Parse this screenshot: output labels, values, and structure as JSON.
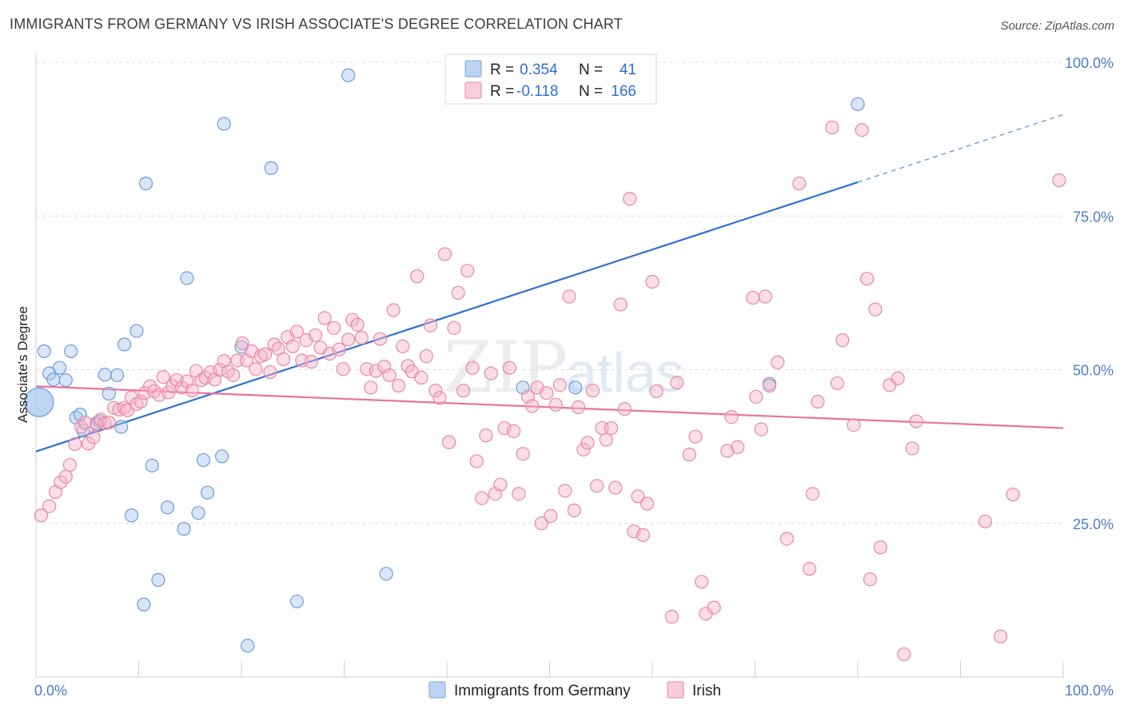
{
  "title": "IMMIGRANTS FROM GERMANY VS IRISH ASSOCIATE'S DEGREE CORRELATION CHART",
  "source": "Source: ZipAtlas.com",
  "watermark": {
    "zip": "ZIP",
    "atlas": "atlas"
  },
  "legend": {
    "rows": [
      {
        "r_label": "R =",
        "r_value": "0.354",
        "n_label": "N =",
        "n_value": "41",
        "color": "#a9c8f0"
      },
      {
        "r_label": "R =",
        "r_value": "-0.118",
        "n_label": "N =",
        "n_value": "166",
        "color": "#f6b6c9"
      }
    ]
  },
  "bottom_legend": [
    {
      "label": "Immigrants from Germany",
      "color": "#a9c8f0"
    },
    {
      "label": "Irish",
      "color": "#f6b6c9"
    }
  ],
  "chart_data": {
    "type": "scatter",
    "title": "IMMIGRANTS FROM GERMANY VS IRISH ASSOCIATE'S DEGREE CORRELATION CHART",
    "xlabel": "",
    "ylabel": "Associate's Degree",
    "xlim": [
      0,
      100
    ],
    "ylim": [
      0,
      100
    ],
    "x_tick_labels": [
      "0.0%",
      "100.0%"
    ],
    "y_tick_labels": [
      "25.0%",
      "50.0%",
      "75.0%",
      "100.0%"
    ],
    "y_ticks": [
      25,
      50,
      75,
      100
    ],
    "grid": true,
    "series": [
      {
        "name": "Immigrants from Germany",
        "color": "#a9c8f0",
        "stroke": "#6c9bd8",
        "trend_color": "#2f6fd6",
        "trend": {
          "x0": 0,
          "y0": 36.7,
          "x1": 80,
          "y1": 80.5,
          "dashed_to_x": 100,
          "dashed_to_y": 91.5
        },
        "points": [
          [
            0.3,
            44.7,
            1
          ],
          [
            0.8,
            53,
            0
          ],
          [
            1.3,
            49.4,
            0
          ],
          [
            1.7,
            48.4,
            0
          ],
          [
            2.3,
            50.3,
            0
          ],
          [
            2.9,
            48.3,
            0
          ],
          [
            3.4,
            53,
            0
          ],
          [
            3.9,
            42.2,
            0
          ],
          [
            4.3,
            42.7,
            0
          ],
          [
            4.6,
            40.1,
            0
          ],
          [
            5.9,
            41.3,
            0
          ],
          [
            6.2,
            41.6,
            0
          ],
          [
            6.7,
            49.2,
            0
          ],
          [
            7.1,
            46.1,
            0
          ],
          [
            7.9,
            49.1,
            0
          ],
          [
            8.3,
            40.7,
            0
          ],
          [
            8.6,
            54.1,
            0
          ],
          [
            9.3,
            26.3,
            0
          ],
          [
            9.8,
            56.3,
            0
          ],
          [
            10.5,
            11.8,
            0
          ],
          [
            10.7,
            80.3,
            0
          ],
          [
            11.3,
            34.4,
            0
          ],
          [
            11.9,
            15.8,
            0
          ],
          [
            12.8,
            27.6,
            0
          ],
          [
            14.4,
            24.1,
            0
          ],
          [
            14.7,
            64.9,
            0
          ],
          [
            15.8,
            26.7,
            0
          ],
          [
            16.3,
            35.3,
            0
          ],
          [
            16.7,
            30,
            0
          ],
          [
            18.1,
            35.9,
            0
          ],
          [
            18.3,
            90,
            0
          ],
          [
            20,
            53.7,
            0
          ],
          [
            20.6,
            5.1,
            0
          ],
          [
            22.9,
            82.8,
            0
          ],
          [
            25.4,
            12.3,
            0
          ],
          [
            30.4,
            97.9,
            0
          ],
          [
            34.1,
            16.8,
            0
          ],
          [
            47.4,
            47.1,
            0
          ],
          [
            52.5,
            47.1,
            0
          ],
          [
            71.4,
            47.7,
            0
          ],
          [
            80,
            93.2,
            0
          ]
        ]
      },
      {
        "name": "Irish",
        "color": "#f6b6c9",
        "stroke": "#e888a4",
        "trend_color": "#e9739a",
        "trend": {
          "x0": 0,
          "y0": 47.3,
          "x1": 100,
          "y1": 40.5
        },
        "points": [
          [
            0.5,
            26.3
          ],
          [
            1.3,
            27.8
          ],
          [
            1.9,
            30.1
          ],
          [
            2.4,
            31.7
          ],
          [
            2.9,
            32.6
          ],
          [
            3.3,
            34.5
          ],
          [
            3.8,
            37.9
          ],
          [
            4.4,
            40.7
          ],
          [
            4.8,
            41.4
          ],
          [
            5.1,
            38
          ],
          [
            5.6,
            39
          ],
          [
            5.9,
            41.1
          ],
          [
            6.3,
            41.9
          ],
          [
            6.7,
            41.3
          ],
          [
            7.1,
            41.4
          ],
          [
            7.6,
            43.8
          ],
          [
            8.1,
            43.5
          ],
          [
            8.6,
            43.8
          ],
          [
            8.9,
            43.4
          ],
          [
            9.3,
            45.5
          ],
          [
            9.8,
            44.4
          ],
          [
            10.2,
            44.8
          ],
          [
            10.6,
            46.2
          ],
          [
            11.1,
            47.3
          ],
          [
            11.5,
            46.5
          ],
          [
            12,
            45.9
          ],
          [
            12.4,
            48.8
          ],
          [
            12.9,
            46.3
          ],
          [
            13.3,
            47.3
          ],
          [
            13.7,
            48.3
          ],
          [
            14.2,
            47.1
          ],
          [
            14.7,
            48.1
          ],
          [
            15.2,
            46.6
          ],
          [
            15.6,
            49.8
          ],
          [
            16.1,
            48.3
          ],
          [
            16.5,
            48.7
          ],
          [
            17,
            49.6
          ],
          [
            17.4,
            48.4
          ],
          [
            17.9,
            50
          ],
          [
            18.3,
            51.4
          ],
          [
            18.7,
            49.7
          ],
          [
            19.2,
            49.1
          ],
          [
            19.6,
            51.5
          ],
          [
            20.1,
            54.3
          ],
          [
            20.5,
            51.5
          ],
          [
            21,
            53
          ],
          [
            21.4,
            50.1
          ],
          [
            21.9,
            52.2
          ],
          [
            22.3,
            52.5
          ],
          [
            22.8,
            49.6
          ],
          [
            23.2,
            54.1
          ],
          [
            23.6,
            53.4
          ],
          [
            24.1,
            51.7
          ],
          [
            24.5,
            55.3
          ],
          [
            25,
            53.8
          ],
          [
            25.4,
            56.2
          ],
          [
            25.9,
            51.5
          ],
          [
            26.3,
            54.8
          ],
          [
            26.8,
            51.3
          ],
          [
            27.2,
            55.6
          ],
          [
            27.7,
            53.6
          ],
          [
            28.1,
            58.4
          ],
          [
            28.6,
            52.6
          ],
          [
            29,
            56.8
          ],
          [
            29.5,
            53.3
          ],
          [
            29.9,
            50.1
          ],
          [
            30.4,
            54.9
          ],
          [
            30.8,
            58.1
          ],
          [
            31.3,
            57.3
          ],
          [
            31.7,
            55.2
          ],
          [
            32.2,
            50.1
          ],
          [
            32.6,
            47.1
          ],
          [
            33.1,
            49.8
          ],
          [
            33.5,
            55
          ],
          [
            33.9,
            50.5
          ],
          [
            34.4,
            49.1
          ],
          [
            34.8,
            59.7
          ],
          [
            35.3,
            47.4
          ],
          [
            35.7,
            53.8
          ],
          [
            36.2,
            50.6
          ],
          [
            36.6,
            49.7
          ],
          [
            37.1,
            65.2
          ],
          [
            37.5,
            48.7
          ],
          [
            38,
            52.2
          ],
          [
            38.4,
            57.2
          ],
          [
            38.9,
            46.6
          ],
          [
            39.3,
            45.4
          ],
          [
            39.8,
            68.8
          ],
          [
            40.2,
            38.2
          ],
          [
            40.7,
            56.8
          ],
          [
            41.1,
            62.5
          ],
          [
            41.6,
            46.6
          ],
          [
            42,
            66.1
          ],
          [
            42.5,
            50.3
          ],
          [
            42.9,
            35.1
          ],
          [
            43.4,
            29.1
          ],
          [
            43.8,
            39.3
          ],
          [
            44.3,
            49.4
          ],
          [
            44.7,
            29.8
          ],
          [
            45.2,
            31.3
          ],
          [
            45.6,
            40.5
          ],
          [
            46.1,
            50.3
          ],
          [
            46.5,
            40
          ],
          [
            47,
            29.8
          ],
          [
            47.4,
            36.3
          ],
          [
            47.9,
            45.6
          ],
          [
            48.3,
            44.1
          ],
          [
            48.8,
            47.1
          ],
          [
            49.2,
            25
          ],
          [
            49.7,
            46.2
          ],
          [
            50.1,
            26.2
          ],
          [
            50.6,
            44.3
          ],
          [
            51,
            47.5
          ],
          [
            51.5,
            30.3
          ],
          [
            51.9,
            61.9
          ],
          [
            52.4,
            27.1
          ],
          [
            52.8,
            43.9
          ],
          [
            53.3,
            37
          ],
          [
            53.7,
            38.1
          ],
          [
            54.2,
            46.6
          ],
          [
            54.6,
            31.1
          ],
          [
            55.1,
            40.5
          ],
          [
            55.5,
            38.6
          ],
          [
            56,
            40.5
          ],
          [
            56.4,
            30.8
          ],
          [
            56.9,
            60.6
          ],
          [
            57.3,
            43.6
          ],
          [
            57.8,
            77.8
          ],
          [
            58.2,
            23.7
          ],
          [
            58.6,
            29.4
          ],
          [
            59.1,
            23.1
          ],
          [
            59.5,
            28.2
          ],
          [
            60,
            64.3
          ],
          [
            60.4,
            46.5
          ],
          [
            61.9,
            9.8
          ],
          [
            62.4,
            47.9
          ],
          [
            63.6,
            36.2
          ],
          [
            64.2,
            39.1
          ],
          [
            64.8,
            15.5
          ],
          [
            65.2,
            10.3
          ],
          [
            66,
            11.3
          ],
          [
            67.3,
            36.8
          ],
          [
            67.7,
            42.3
          ],
          [
            68.3,
            37.4
          ],
          [
            69.8,
            61.7
          ],
          [
            70.1,
            45.6
          ],
          [
            70.6,
            40.3
          ],
          [
            71,
            61.9
          ],
          [
            71.4,
            47.4
          ],
          [
            72.2,
            51.2
          ],
          [
            73.1,
            22.5
          ],
          [
            74.3,
            80.3
          ],
          [
            75.3,
            17.6
          ],
          [
            75.6,
            29.8
          ],
          [
            76.1,
            44.8
          ],
          [
            77.5,
            89.4
          ],
          [
            78,
            47.8
          ],
          [
            78.5,
            54.8
          ],
          [
            79.6,
            41
          ],
          [
            80.4,
            89
          ],
          [
            80.9,
            64.8
          ],
          [
            81.2,
            15.9
          ],
          [
            81.7,
            59.8
          ],
          [
            82.2,
            21.1
          ],
          [
            83.1,
            47.5
          ],
          [
            83.9,
            48.6
          ],
          [
            84.5,
            3.7
          ],
          [
            85.3,
            37.2
          ],
          [
            85.7,
            41.6
          ],
          [
            92.4,
            25.3
          ],
          [
            93.9,
            6.6
          ],
          [
            95.1,
            29.7
          ],
          [
            99.6,
            80.8
          ]
        ]
      }
    ]
  }
}
